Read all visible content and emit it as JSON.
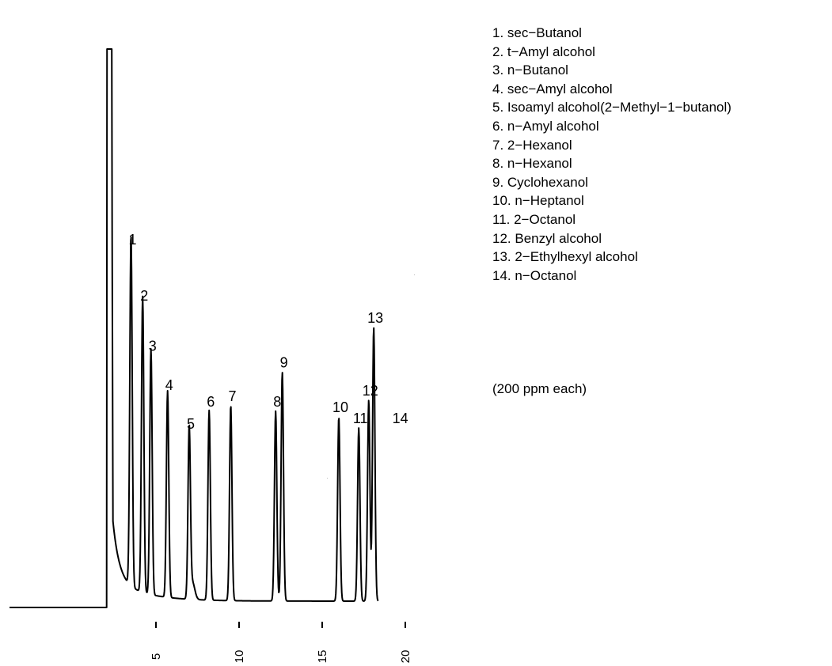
{
  "chart_data": {
    "type": "line",
    "title": "",
    "xlabel": "",
    "ylabel": "",
    "x_ticks": [
      5,
      10,
      15,
      20
    ],
    "xlim": [
      0,
      22
    ],
    "ylim": [
      0,
      100
    ],
    "series": [
      {
        "peaks": [
          {
            "label": "1",
            "x": 3.5,
            "y": 63
          },
          {
            "label": "2",
            "x": 4.2,
            "y": 53
          },
          {
            "label": "3",
            "x": 4.7,
            "y": 44
          },
          {
            "label": "4",
            "x": 5.7,
            "y": 37
          },
          {
            "label": "5",
            "x": 7.0,
            "y": 30
          },
          {
            "label": "6",
            "x": 8.2,
            "y": 34
          },
          {
            "label": "7",
            "x": 9.5,
            "y": 35
          },
          {
            "label": "8",
            "x": 12.2,
            "y": 34
          },
          {
            "label": "9",
            "x": 12.6,
            "y": 41
          },
          {
            "label": "10",
            "x": 16.0,
            "y": 33
          },
          {
            "label": "11",
            "x": 17.2,
            "y": 31
          },
          {
            "label": "12",
            "x": 17.8,
            "y": 36
          },
          {
            "label": "13",
            "x": 18.1,
            "y": 49
          },
          {
            "label": "14",
            "x": 19.6,
            "y": 31
          }
        ]
      }
    ],
    "legend": {
      "placement": "right",
      "items": [
        "1. sec−Butanol",
        "2. t−Amyl alcohol",
        "3. n−Butanol",
        "4. sec−Amyl alcohol",
        "5. Isoamyl alcohol(2−Methyl−1−butanol)",
        "6. n−Amyl alcohol",
        "7. 2−Hexanol",
        "8. n−Hexanol",
        "9. Cyclohexanol",
        "10. n−Heptanol",
        "11. 2−Octanol",
        "12. Benzyl alcohol",
        "13. 2−Ethylhexyl alcohol",
        "14. n−Octanol"
      ]
    },
    "note": "(200 ppm each)"
  }
}
